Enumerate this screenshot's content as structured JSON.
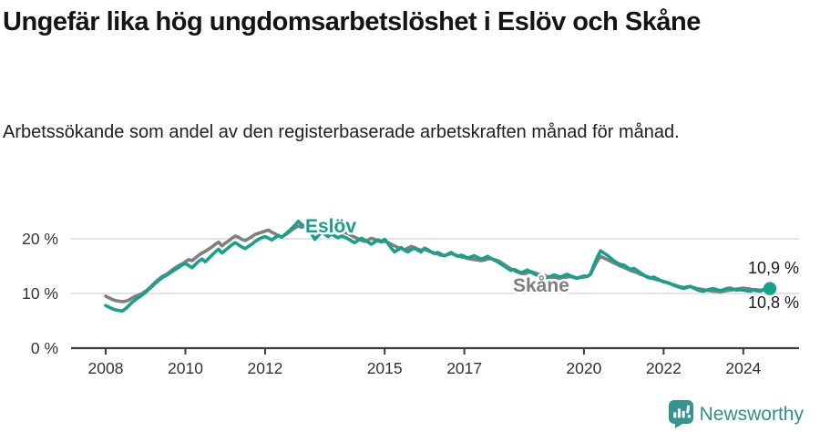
{
  "header": {
    "title": "Ungefär lika hög ungdomsarbetslöshet i Eslöv och Skåne",
    "subtitle": "Arbetssökande som andel av den registerbaserade arbetskraften månad för månad."
  },
  "footer": {
    "brand": "Newsworthy"
  },
  "colors": {
    "accent_teal": "#17a18c",
    "line_gray": "#7f7f7f",
    "brand_teal": "#2f918c",
    "grid": "#dcdcdc",
    "axis": "#3c3c3c"
  },
  "chart_data": {
    "type": "line",
    "unit": "%",
    "x_start_year": 2008,
    "x_months_per_point": 1,
    "ylim": [
      0,
      25
    ],
    "grid": "horizontal",
    "legend_position": "inline-labels",
    "x_ticks": [
      {
        "year": 2008,
        "label": "2008"
      },
      {
        "year": 2010,
        "label": "2010"
      },
      {
        "year": 2012,
        "label": "2012"
      },
      {
        "year": 2015,
        "label": "2015"
      },
      {
        "year": 2017,
        "label": "2017"
      },
      {
        "year": 2020,
        "label": "2020"
      },
      {
        "year": 2022,
        "label": "2022"
      },
      {
        "year": 2024,
        "label": "2024"
      }
    ],
    "y_ticks": [
      {
        "value": 0,
        "label": "0 %"
      },
      {
        "value": 10,
        "label": "10 %"
      },
      {
        "value": 20,
        "label": "20 %"
      }
    ],
    "series": [
      {
        "name": "Skåne",
        "color": "#7f7f7f",
        "end_dot": false,
        "values": [
          9.5,
          9.2,
          8.9,
          8.7,
          8.6,
          8.5,
          8.6,
          8.8,
          9.2,
          9.5,
          9.7,
          10.0,
          10.4,
          10.9,
          11.5,
          12.1,
          12.6,
          13.1,
          13.4,
          13.8,
          14.3,
          14.7,
          15.1,
          15.4,
          15.8,
          16.2,
          16.0,
          16.5,
          17.0,
          17.4,
          17.7,
          18.1,
          18.5,
          19.0,
          19.4,
          18.7,
          19.2,
          19.6,
          20.1,
          20.5,
          20.3,
          19.9,
          19.7,
          20.0,
          20.4,
          20.8,
          21.0,
          21.2,
          21.4,
          21.6,
          21.2,
          20.9,
          20.6,
          20.3,
          20.7,
          21.1,
          21.6,
          22.0,
          22.3,
          22.1,
          22.4,
          22.6,
          22.3,
          22.0,
          21.7,
          21.4,
          21.1,
          21.3,
          21.6,
          21.4,
          21.2,
          21.0,
          21.2,
          20.9,
          20.6,
          20.3,
          20.0,
          19.7,
          19.5,
          19.8,
          20.1,
          19.9,
          19.6,
          19.4,
          19.6,
          19.3,
          19.0,
          18.7,
          18.4,
          18.2,
          18.0,
          18.3,
          18.6,
          18.4,
          18.1,
          17.9,
          18.1,
          17.8,
          17.6,
          17.4,
          17.2,
          17.0,
          16.9,
          17.1,
          17.3,
          17.1,
          16.9,
          16.7,
          16.6,
          16.4,
          16.3,
          16.2,
          16.1,
          16.0,
          16.1,
          16.3,
          16.4,
          16.2,
          16.0,
          15.7,
          15.3,
          14.9,
          14.5,
          14.2,
          13.9,
          13.7,
          13.6,
          13.8,
          14.0,
          13.8,
          13.6,
          13.4,
          13.3,
          13.1,
          13.0,
          12.9,
          12.8,
          12.7,
          12.8,
          13.0,
          13.1,
          12.9,
          12.8,
          12.9,
          13.0,
          13.1,
          13.5,
          14.8,
          15.9,
          16.8,
          16.5,
          16.2,
          15.9,
          15.6,
          15.3,
          15.0,
          14.8,
          14.5,
          14.2,
          14.0,
          13.8,
          13.5,
          13.3,
          13.1,
          12.9,
          12.7,
          12.5,
          12.4,
          12.2,
          12.0,
          11.8,
          11.6,
          11.4,
          11.2,
          11.1,
          11.2,
          11.3,
          11.1,
          10.9,
          10.8,
          10.7,
          10.6,
          10.5,
          10.4,
          10.4,
          10.3,
          10.4,
          10.5,
          10.6,
          10.7,
          10.8,
          10.9,
          11.0,
          10.9,
          10.8,
          10.7,
          10.7,
          10.6,
          10.7,
          10.8,
          10.8
        ]
      },
      {
        "name": "Eslöv",
        "color": "#17a18c",
        "end_dot": true,
        "values": [
          7.8,
          7.5,
          7.2,
          7.0,
          6.9,
          6.8,
          7.2,
          7.8,
          8.4,
          8.9,
          9.3,
          9.7,
          10.2,
          10.8,
          11.3,
          11.9,
          12.4,
          12.9,
          13.2,
          13.6,
          14.0,
          14.4,
          14.8,
          15.2,
          15.5,
          15.1,
          14.7,
          15.3,
          15.9,
          16.3,
          15.8,
          16.4,
          17.0,
          17.6,
          18.1,
          17.4,
          17.9,
          18.4,
          18.9,
          19.3,
          18.9,
          18.5,
          18.2,
          18.6,
          19.0,
          19.5,
          19.9,
          20.2,
          20.4,
          20.1,
          19.8,
          20.2,
          20.6,
          20.3,
          20.8,
          21.3,
          21.9,
          22.5,
          23.2,
          22.6,
          22.2,
          21.8,
          20.9,
          19.9,
          20.6,
          21.2,
          20.8,
          20.4,
          20.9,
          20.5,
          20.2,
          20.5,
          20.3,
          20.0,
          19.6,
          19.3,
          19.7,
          20.1,
          19.8,
          19.4,
          19.0,
          19.4,
          19.8,
          19.5,
          19.9,
          19.2,
          18.3,
          17.6,
          18.0,
          18.4,
          17.9,
          17.6,
          18.0,
          18.3,
          17.9,
          17.6,
          18.3,
          18.0,
          17.6,
          17.3,
          17.5,
          17.2,
          16.9,
          17.2,
          17.5,
          17.1,
          16.8,
          17.0,
          16.8,
          16.5,
          16.7,
          16.9,
          16.6,
          16.3,
          16.5,
          16.8,
          16.4,
          16.1,
          15.8,
          15.4,
          15.0,
          14.6,
          14.2,
          14.4,
          14.1,
          13.8,
          14.0,
          14.3,
          13.9,
          13.6,
          13.3,
          13.1,
          13.0,
          12.8,
          13.1,
          13.4,
          13.2,
          13.0,
          13.3,
          13.5,
          13.2,
          13.0,
          12.8,
          13.0,
          13.2,
          13.1,
          13.6,
          15.2,
          16.6,
          17.8,
          17.4,
          17.0,
          16.5,
          16.0,
          15.6,
          15.3,
          15.2,
          14.8,
          14.4,
          14.6,
          14.2,
          13.8,
          13.4,
          13.0,
          12.8,
          13.0,
          12.7,
          12.4,
          12.1,
          12.0,
          11.8,
          11.5,
          11.3,
          11.1,
          10.9,
          11.1,
          11.3,
          11.0,
          10.7,
          10.5,
          10.4,
          10.6,
          10.8,
          10.9,
          10.7,
          10.5,
          10.7,
          10.9,
          11.0,
          10.8,
          10.6,
          10.7,
          10.6,
          10.5,
          10.4,
          10.6,
          10.5,
          10.4,
          10.6,
          10.8,
          10.9
        ]
      }
    ],
    "series_labels": [
      {
        "text": "Eslöv",
        "color": "#17a18c",
        "x": 335,
        "y": 35
      },
      {
        "text": "Skåne",
        "color": "#7f7f7f",
        "x": 563,
        "y": 100
      }
    ],
    "end_value_labels": [
      {
        "text": "10,9 %",
        "series": "Eslöv",
        "y": 80
      },
      {
        "text": "10,8 %",
        "series": "Skåne",
        "y": 118
      }
    ]
  }
}
